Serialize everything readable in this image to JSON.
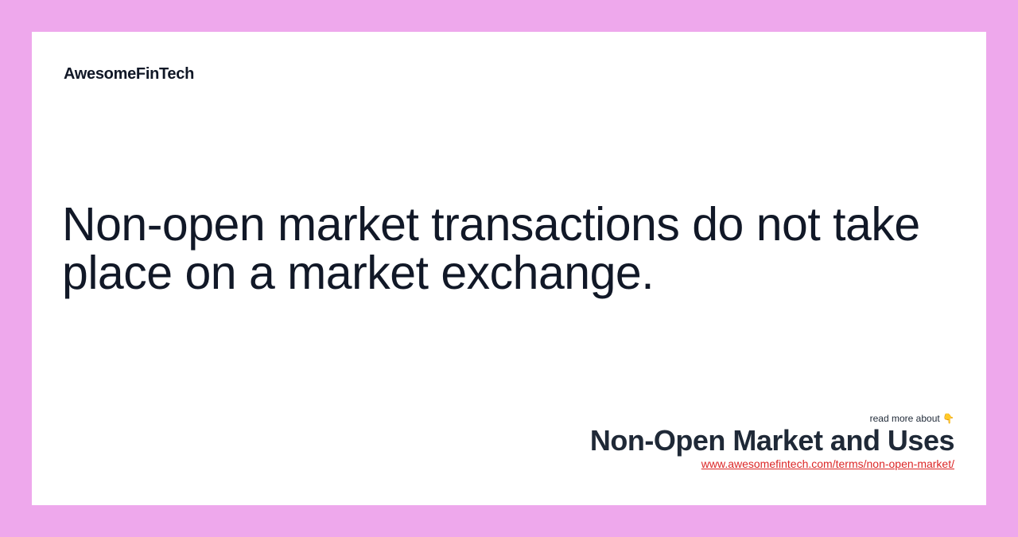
{
  "brand": {
    "name": "AwesomeFinTech"
  },
  "main": {
    "quote": "Non-open market transactions do not take place on a market exchange."
  },
  "footer": {
    "read_more_label": "read more about",
    "pointer_emoji": "👇",
    "topic_title": "Non-Open Market and Uses",
    "topic_url": "www.awesomefintech.com/terms/non-open-market/"
  },
  "colors": {
    "background": "#eea8ec",
    "card": "#ffffff",
    "text": "#111827",
    "link": "#dc2626"
  }
}
